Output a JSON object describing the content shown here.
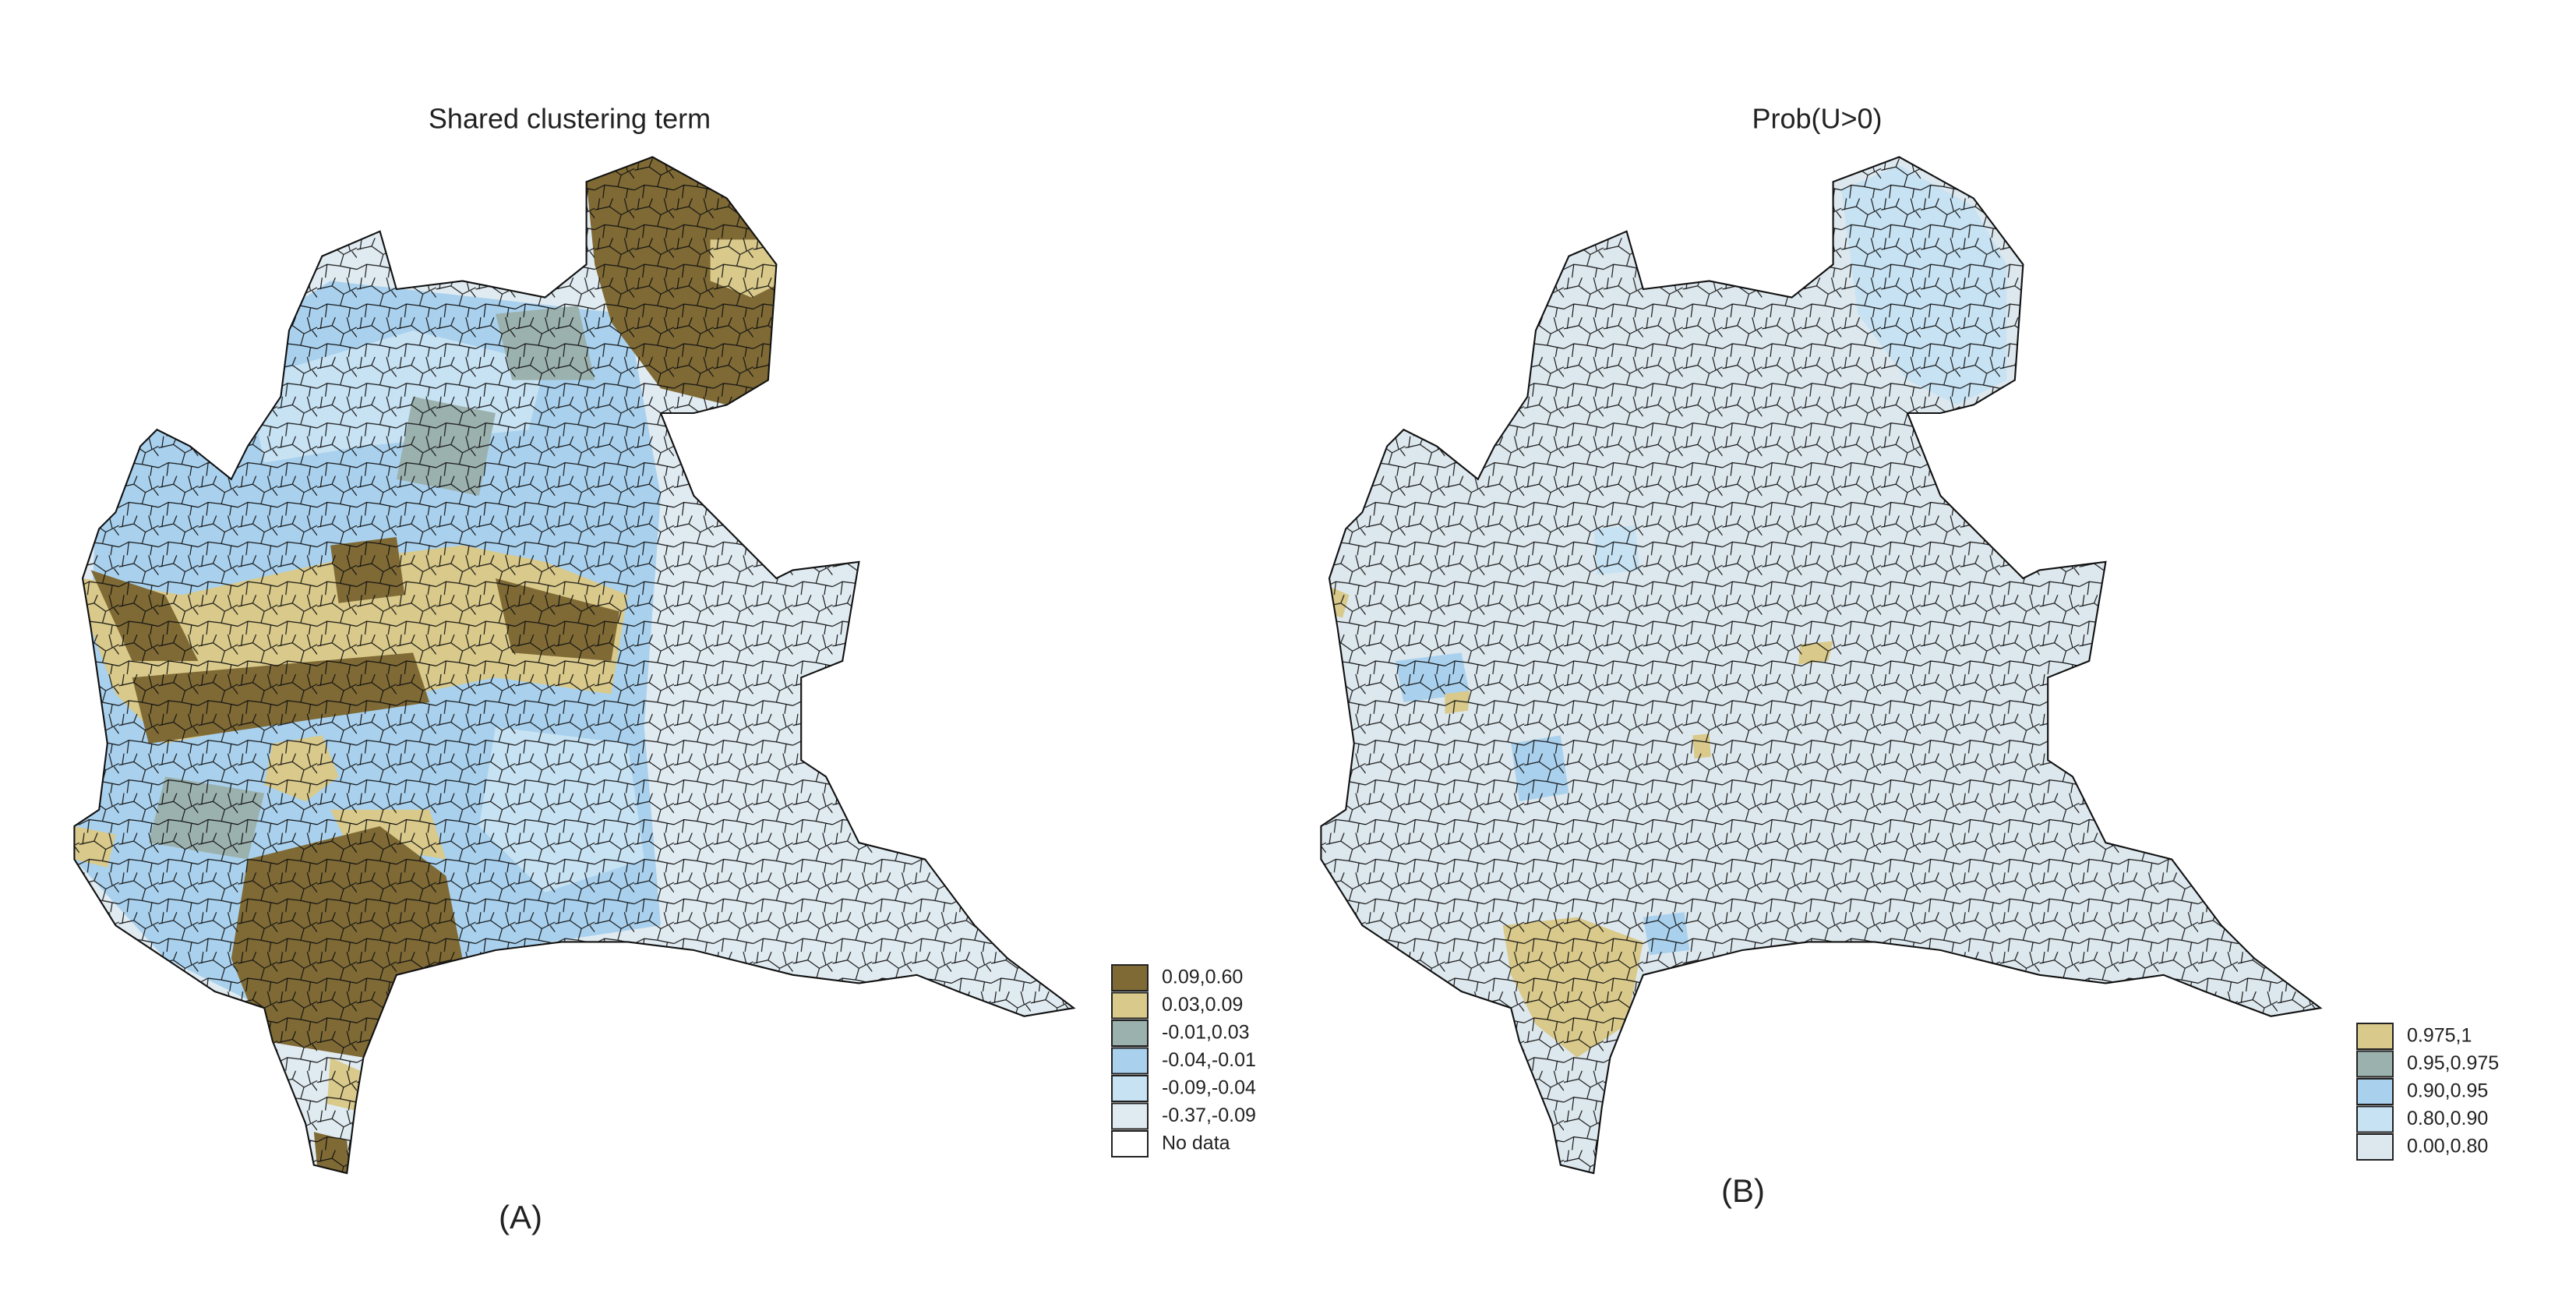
{
  "panels": [
    {
      "title": "Shared clustering term",
      "label": "(A)",
      "legend": [
        {
          "label": "0.09,0.60",
          "color": "#7f6a35"
        },
        {
          "label": "0.03,0.09",
          "color": "#d9c98a"
        },
        {
          "label": "-0.01,0.03",
          "color": "#9bb1ad"
        },
        {
          "label": "-0.04,-0.01",
          "color": "#a9d1ee"
        },
        {
          "label": "-0.09,-0.04",
          "color": "#c7e2f3"
        },
        {
          "label": "-0.37,-0.09",
          "color": "#e0ebf1"
        },
        {
          "label": "No data",
          "color": "#ffffff"
        }
      ]
    },
    {
      "title": "Prob(U>0)",
      "label": "(B)",
      "legend": [
        {
          "label": "0.975,1",
          "color": "#d9c98a"
        },
        {
          "label": "0.95,0.975",
          "color": "#9bb1ad"
        },
        {
          "label": "0.90,0.95",
          "color": "#a9d1ee"
        },
        {
          "label": "0.80,0.90",
          "color": "#c7e2f3"
        },
        {
          "label": "0.00,0.80",
          "color": "#dde8ee"
        }
      ]
    }
  ]
}
